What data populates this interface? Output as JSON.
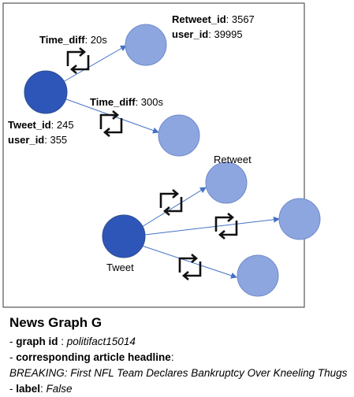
{
  "graph": {
    "tweet_node_label": [
      {
        "key": "Tweet_id",
        "rest": ": 245"
      },
      {
        "key": "user_id",
        "rest": ": 355"
      }
    ],
    "retweet_node_label": [
      {
        "key": "Retweet_id",
        "rest": ": 3567"
      },
      {
        "key": "user_id",
        "rest": ": 39995"
      }
    ],
    "edge_labels": [
      {
        "key": "Time_diff",
        "rest": ": 20s"
      },
      {
        "key": "Time_diff",
        "rest": ": 300s"
      }
    ],
    "retweet_caption": "Retweet",
    "tweet_caption": "Tweet"
  },
  "caption": {
    "title": "News Graph G",
    "lines": [
      {
        "prefix": "- ",
        "key": "graph id",
        "sep": " : ",
        "value": "politifact15014"
      },
      {
        "prefix": "- ",
        "key": "corresponding article headline",
        "sep": ":",
        "value": ""
      },
      {
        "headline": "BREAKING: First NFL Team Declares Bankruptcy Over Kneeling Thugs"
      },
      {
        "prefix": "- ",
        "key": "label",
        "sep": ": ",
        "value": "False"
      }
    ]
  }
}
